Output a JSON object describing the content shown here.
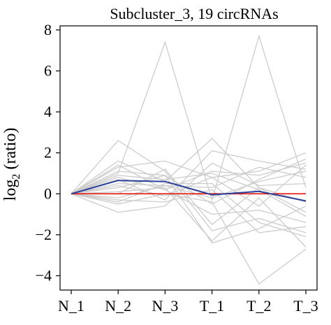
{
  "chart_data": {
    "type": "line",
    "title": "Subcluster_3, 19 circRNAs",
    "ylabel_main": "log",
    "ylabel_sub": "2",
    "ylabel_tail": " (ratio)",
    "categories": [
      "N_1",
      "N_2",
      "N_3",
      "T_1",
      "T_2",
      "T_3"
    ],
    "ylim": [
      -4.7,
      8.2
    ],
    "yticks": [
      -4,
      -2,
      0,
      2,
      4,
      6,
      8
    ],
    "grid": false,
    "colors": {
      "member": "#cccccc",
      "mean": "#2a3f9a",
      "baseline": "#e3231b"
    },
    "member_series": [
      [
        0,
        1.6,
        0.6,
        2.7,
        0.3,
        -0.4
      ],
      [
        0,
        1.3,
        1.6,
        0.8,
        1.1,
        2.0
      ],
      [
        0,
        1.0,
        7.4,
        -0.3,
        7.7,
        0.3
      ],
      [
        0,
        0.8,
        0.2,
        1.1,
        0.9,
        1.5
      ],
      [
        0,
        0.5,
        0.4,
        -0.2,
        0.6,
        1.1
      ],
      [
        0,
        0.3,
        0.9,
        -0.5,
        0.7,
        1.7
      ],
      [
        0,
        0.7,
        -0.3,
        2.1,
        1.6,
        1.2
      ],
      [
        0,
        -0.2,
        0.4,
        0.3,
        1.3,
        0.8
      ],
      [
        0,
        0.9,
        0.7,
        1.0,
        0.2,
        -1.1
      ],
      [
        0,
        -0.4,
        0.5,
        0.5,
        -1.4,
        -2.1
      ],
      [
        0,
        0.1,
        0.3,
        -2.3,
        -0.2,
        -2.6
      ],
      [
        0,
        -0.9,
        -0.6,
        1.5,
        0.4,
        0.5
      ],
      [
        0,
        2.6,
        1.1,
        -1.8,
        -1.2,
        -1.9
      ],
      [
        0,
        1.4,
        0.2,
        -1.0,
        -0.8,
        -1.4
      ],
      [
        0,
        -0.5,
        0.0,
        -0.4,
        -4.4,
        -2.7
      ],
      [
        0,
        1.1,
        0.9,
        -2.4,
        -1.7,
        -0.6
      ],
      [
        0,
        0.4,
        -0.1,
        0.8,
        -0.6,
        1.4
      ],
      [
        0,
        0.0,
        1.2,
        -1.5,
        0.3,
        -0.9
      ],
      [
        0,
        -0.3,
        -0.4,
        0.2,
        -1.9,
        -1.6
      ]
    ],
    "mean_series": [
      0,
      0.65,
      0.6,
      -0.05,
      0.12,
      -0.35
    ],
    "baseline": 0
  }
}
